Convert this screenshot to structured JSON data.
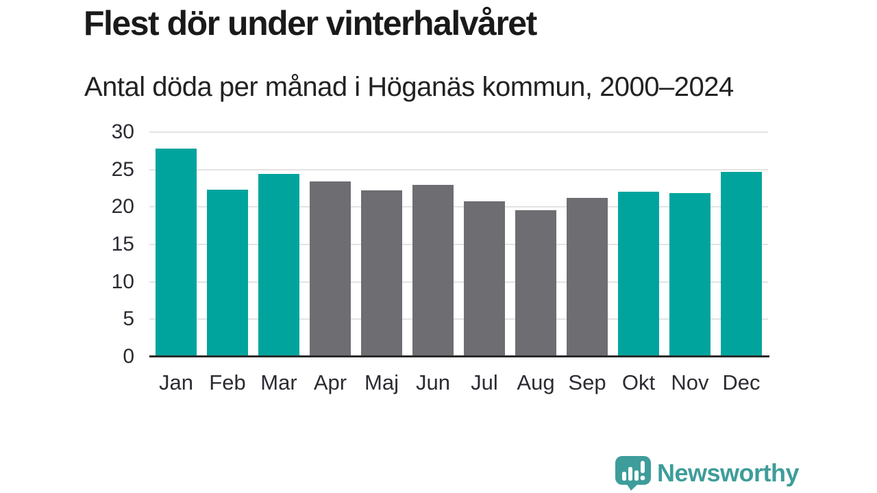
{
  "header": {
    "title": "Flest dör under vinterhalvåret",
    "subtitle": "Antal döda per månad i Höganäs kommun, 2000–2024"
  },
  "chart_data": {
    "type": "bar",
    "categories": [
      "Jan",
      "Feb",
      "Mar",
      "Apr",
      "Maj",
      "Jun",
      "Jul",
      "Aug",
      "Sep",
      "Okt",
      "Nov",
      "Dec"
    ],
    "values": [
      27.8,
      22.3,
      24.4,
      23.4,
      22.2,
      23.0,
      20.8,
      19.6,
      21.2,
      22.0,
      21.9,
      24.7
    ],
    "bar_colors": [
      "teal",
      "teal",
      "teal",
      "gray",
      "gray",
      "gray",
      "gray",
      "gray",
      "gray",
      "teal",
      "teal",
      "teal"
    ],
    "title": "Flest dör under vinterhalvåret",
    "subtitle": "Antal döda per månad i Höganäs kommun, 2000–2024",
    "xlabel": "",
    "ylabel": "",
    "ylim": [
      0,
      30
    ],
    "yticks": [
      0,
      5,
      10,
      15,
      20,
      25,
      30
    ],
    "grid": true,
    "legend": "none"
  },
  "colors": {
    "teal": "#00A49D",
    "gray": "#6E6D72",
    "gridline": "#E3E3E3",
    "axis": "#2A2A2A",
    "title_text": "#1A1A1A",
    "subtitle_text": "#222222",
    "tick_text": "#2B2B33",
    "logo": "#3E9D9A"
  },
  "footer": {
    "logo_text": "Newsworthy"
  },
  "icons": {
    "logo_icon": "bar-chart-speech-bubble-icon"
  }
}
